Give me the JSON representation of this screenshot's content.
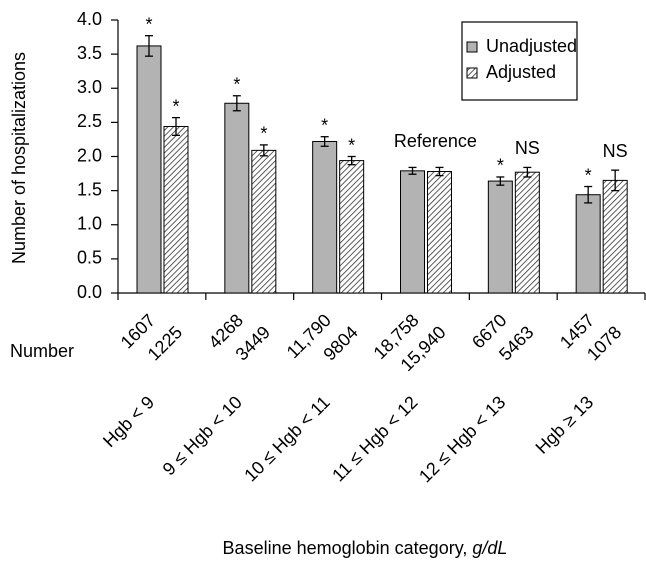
{
  "chart_data": {
    "type": "bar",
    "y_label": "Number of hospitalizations",
    "x_label": "Baseline hemoglobin category,",
    "x_label_unit": "g/dL",
    "count_label": "Number",
    "categories": [
      "Hgb < 9",
      "9 ≤ Hgb < 10",
      "10 ≤ Hgb < 11",
      "11 ≤ Hgb < 12",
      "12 ≤ Hgb < 13",
      "Hgb ≥ 13"
    ],
    "series": [
      {
        "name": "Unadjusted",
        "color": "#b3b3b3",
        "hatch": false,
        "values": [
          3.62,
          2.78,
          2.22,
          1.79,
          1.64,
          1.44
        ],
        "errors": [
          0.15,
          0.11,
          0.07,
          0.05,
          0.06,
          0.12
        ],
        "markers": [
          "*",
          "*",
          "*",
          null,
          "*",
          "*"
        ],
        "counts": [
          "1607",
          "4268",
          "11,790",
          "18,758",
          "6670",
          "1457"
        ]
      },
      {
        "name": "Adjusted",
        "color": "#333333",
        "hatch": true,
        "values": [
          2.44,
          2.09,
          1.94,
          1.78,
          1.77,
          1.65
        ],
        "errors": [
          0.13,
          0.08,
          0.06,
          0.06,
          0.07,
          0.15
        ],
        "markers": [
          "*",
          "*",
          "*",
          null,
          "NS",
          "NS"
        ],
        "counts": [
          "1225",
          "3449",
          "9804",
          "15,940",
          "5463",
          "1078"
        ]
      }
    ],
    "annotation": {
      "text": "Reference",
      "category": 3
    },
    "ylim": [
      0,
      4
    ],
    "yticks": [
      {
        "value": 0,
        "label": "0.0"
      },
      {
        "value": 0.5,
        "label": "0.5"
      },
      {
        "value": 1,
        "label": "1.0"
      },
      {
        "value": 1.5,
        "label": "1.5"
      },
      {
        "value": 2,
        "label": "2.0"
      },
      {
        "value": 2.5,
        "label": "2.5"
      },
      {
        "value": 3,
        "label": "3.0"
      },
      {
        "value": 3.5,
        "label": "3.5"
      },
      {
        "value": 4,
        "label": "4.0"
      }
    ],
    "legend": "top-right"
  }
}
